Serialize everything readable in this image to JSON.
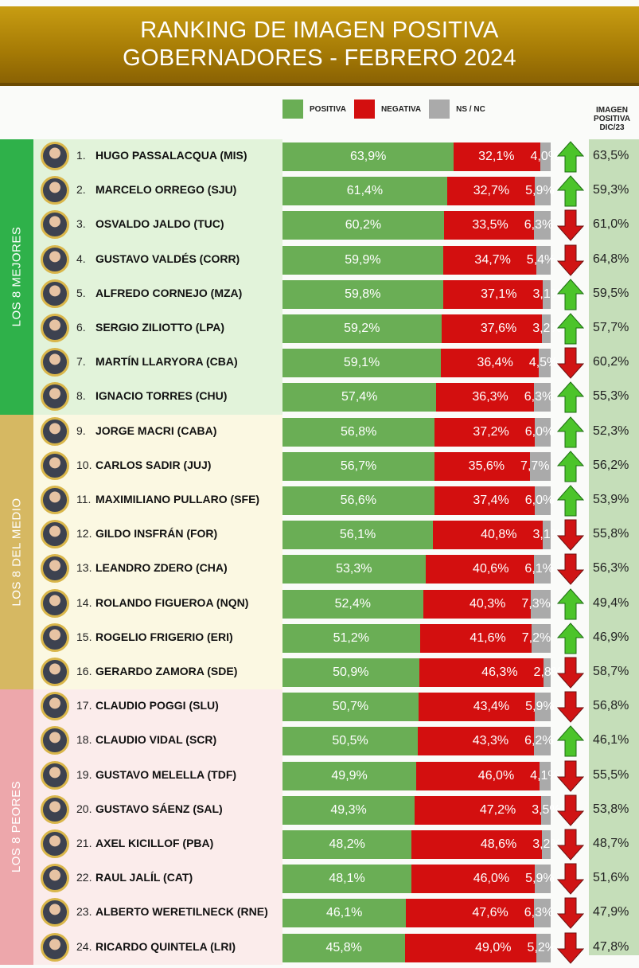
{
  "title": {
    "line1": "RANKING DE IMAGEN POSITIVA",
    "line2": "GOBERNADORES - FEBRERO 2024"
  },
  "legend": [
    {
      "label": "POSITIVA",
      "color": "#6aae55"
    },
    {
      "label": "NEGATIVA",
      "color": "#d30f0f"
    },
    {
      "label": "NS / NC",
      "color": "#aaaaaa"
    }
  ],
  "dic_header": {
    "l1": "IMAGEN",
    "l2": "POSITIVA",
    "l3": "DIC/23"
  },
  "groups": [
    {
      "label": "LOS 8 MEJORES",
      "color": "#2fb14a",
      "bg": "#e2f3da"
    },
    {
      "label": "LOS 8 DEL MEDIO",
      "color": "#d6b862",
      "bg": "#fbf8e2"
    },
    {
      "label": "LOS 8 PEORES",
      "color": "#eda7ab",
      "bg": "#fbeceb"
    }
  ],
  "colors": {
    "up": "#4cc42a",
    "down": "#d01414"
  },
  "chart_data": {
    "type": "bar",
    "stacked": true,
    "orientation": "horizontal",
    "xlim": [
      0,
      100
    ],
    "series_names": [
      "POSITIVA",
      "NEGATIVA",
      "NS / NC"
    ],
    "rows": [
      {
        "rank": "1.",
        "name": "HUGO PASSALACQUA (MIS)",
        "pos": "63,9%",
        "neg": "32,1%",
        "ns": "4,0%",
        "trend": "up",
        "dic": "63,5%"
      },
      {
        "rank": "2.",
        "name": "MARCELO ORREGO (SJU)",
        "pos": "61,4%",
        "neg": "32,7%",
        "ns": "5,9%",
        "trend": "up",
        "dic": "59,3%"
      },
      {
        "rank": "3.",
        "name": "OSVALDO JALDO (TUC)",
        "pos": "60,2%",
        "neg": "33,5%",
        "ns": "6,3%",
        "trend": "down",
        "dic": "61,0%"
      },
      {
        "rank": "4.",
        "name": "GUSTAVO VALDÉS (CORR)",
        "pos": "59,9%",
        "neg": "34,7%",
        "ns": "5,4%",
        "trend": "down",
        "dic": "64,8%"
      },
      {
        "rank": "5.",
        "name": "ALFREDO CORNEJO (MZA)",
        "pos": "59,8%",
        "neg": "37,1%",
        "ns": "3,1%",
        "trend": "up",
        "dic": "59,5%"
      },
      {
        "rank": "6.",
        "name": "SERGIO ZILIOTTO (LPA)",
        "pos": "59,2%",
        "neg": "37,6%",
        "ns": "3,2%",
        "trend": "up",
        "dic": "57,7%"
      },
      {
        "rank": "7.",
        "name": "MARTÍN LLARYORA (CBA)",
        "pos": "59,1%",
        "neg": "36,4%",
        "ns": "4,5%",
        "trend": "down",
        "dic": "60,2%"
      },
      {
        "rank": "8.",
        "name": "IGNACIO TORRES (CHU)",
        "pos": "57,4%",
        "neg": "36,3%",
        "ns": "6,3%",
        "trend": "up",
        "dic": "55,3%"
      },
      {
        "rank": "9.",
        "name": "JORGE MACRI (CABA)",
        "pos": "56,8%",
        "neg": "37,2%",
        "ns": "6,0%",
        "trend": "up",
        "dic": "52,3%"
      },
      {
        "rank": "10.",
        "name": "CARLOS SADIR (JUJ)",
        "pos": "56,7%",
        "neg": "35,6%",
        "ns": "7,7%",
        "trend": "up",
        "dic": "56,2%"
      },
      {
        "rank": "11.",
        "name": "MAXIMILIANO PULLARO (SFE)",
        "pos": "56,6%",
        "neg": "37,4%",
        "ns": "6,0%",
        "trend": "up",
        "dic": "53,9%"
      },
      {
        "rank": "12.",
        "name": "GILDO INSFRÁN (FOR)",
        "pos": "56,1%",
        "neg": "40,8%",
        "ns": "3,1%",
        "trend": "down",
        "dic": "55,8%"
      },
      {
        "rank": "13.",
        "name": "LEANDRO ZDERO (CHA)",
        "pos": "53,3%",
        "neg": "40,6%",
        "ns": "6,1%",
        "trend": "down",
        "dic": "56,3%"
      },
      {
        "rank": "14.",
        "name": "ROLANDO FIGUEROA (NQN)",
        "pos": "52,4%",
        "neg": "40,3%",
        "ns": "7,3%",
        "trend": "up",
        "dic": "49,4%"
      },
      {
        "rank": "15.",
        "name": "ROGELIO FRIGERIO (ERI)",
        "pos": "51,2%",
        "neg": "41,6%",
        "ns": "7,2%",
        "trend": "up",
        "dic": "46,9%"
      },
      {
        "rank": "16.",
        "name": "GERARDO ZAMORA (SDE)",
        "pos": "50,9%",
        "neg": "46,3%",
        "ns": "2,8%",
        "trend": "down",
        "dic": "58,7%"
      },
      {
        "rank": "17.",
        "name": "CLAUDIO POGGI (SLU)",
        "pos": "50,7%",
        "neg": "43,4%",
        "ns": "5,9%",
        "trend": "down",
        "dic": "56,8%"
      },
      {
        "rank": "18.",
        "name": "CLAUDIO VIDAL (SCR)",
        "pos": "50,5%",
        "neg": "43,3%",
        "ns": "6,2%",
        "trend": "up",
        "dic": "46,1%"
      },
      {
        "rank": "19.",
        "name": "GUSTAVO MELELLA (TDF)",
        "pos": "49,9%",
        "neg": "46,0%",
        "ns": "4,1%",
        "trend": "down",
        "dic": "55,5%"
      },
      {
        "rank": "20.",
        "name": "GUSTAVO SÁENZ (SAL)",
        "pos": "49,3%",
        "neg": "47,2%",
        "ns": "3,5%",
        "trend": "down",
        "dic": "53,8%"
      },
      {
        "rank": "21.",
        "name": "AXEL KICILLOF (PBA)",
        "pos": "48,2%",
        "neg": "48,6%",
        "ns": "3,2%",
        "trend": "down",
        "dic": "48,7%"
      },
      {
        "rank": "22.",
        "name": "RAUL JALÍL (CAT)",
        "pos": "48,1%",
        "neg": "46,0%",
        "ns": "5,9%",
        "trend": "down",
        "dic": "51,6%"
      },
      {
        "rank": "23.",
        "name": "ALBERTO WERETILNECK (RNE)",
        "pos": "46,1%",
        "neg": "47,6%",
        "ns": "6,3%",
        "trend": "down",
        "dic": "47,9%"
      },
      {
        "rank": "24.",
        "name": "RICARDO QUINTELA (LRI)",
        "pos": "45,8%",
        "neg": "49,0%",
        "ns": "5,2%",
        "trend": "down",
        "dic": "47,8%"
      }
    ]
  }
}
